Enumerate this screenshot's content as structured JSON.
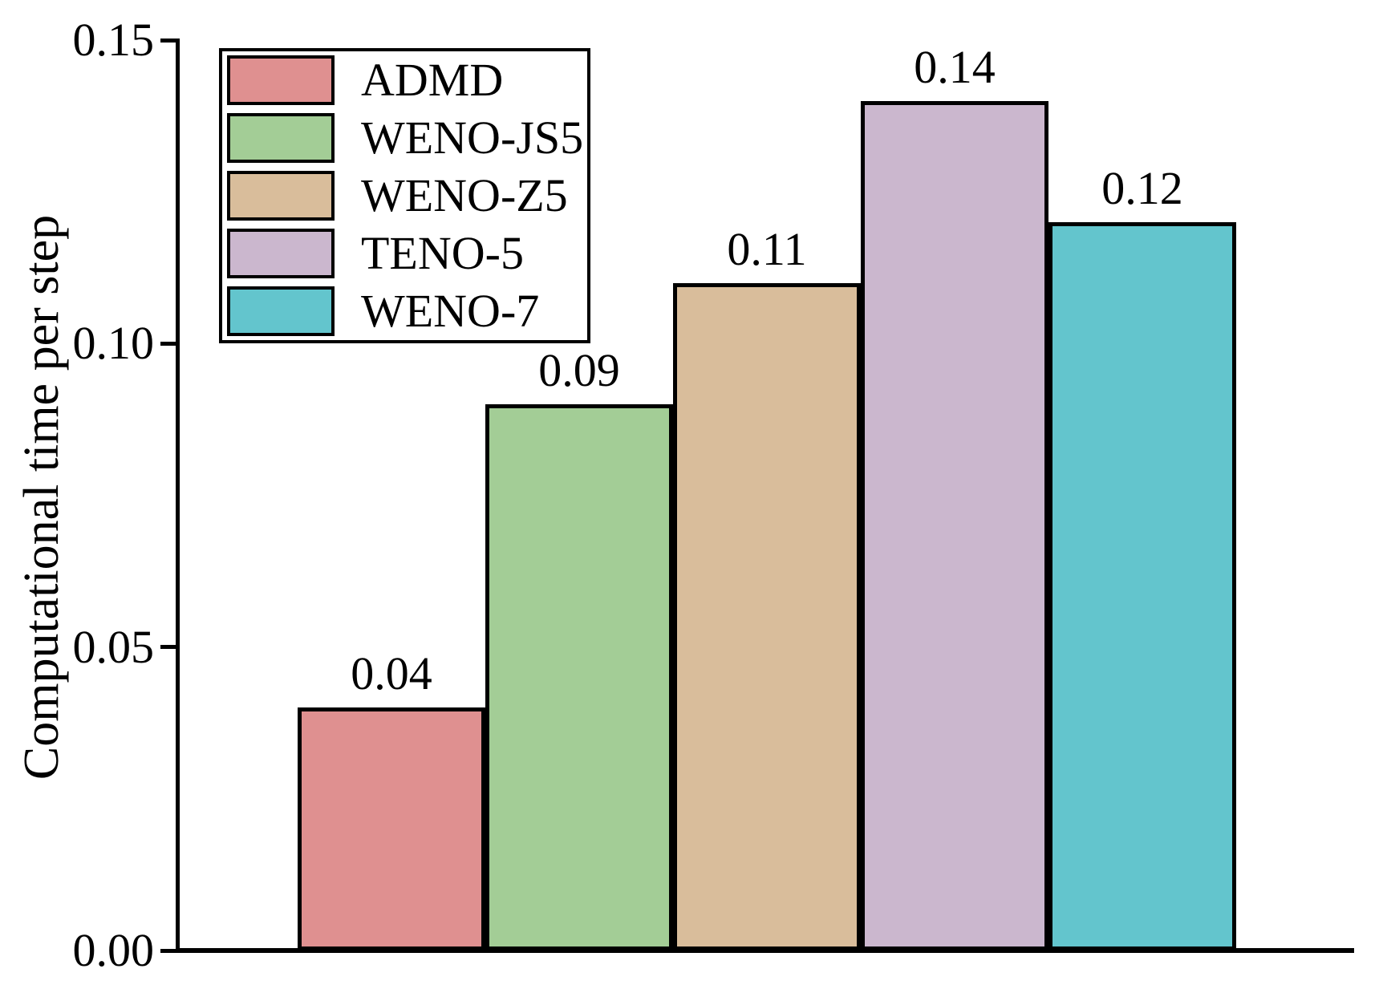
{
  "chart_data": {
    "type": "bar",
    "title": "",
    "xlabel": "",
    "ylabel": "Computational time per step",
    "categories": [
      "ADMD",
      "WENO-JS5",
      "WENO-Z5",
      "TENO-5",
      "WENO-7"
    ],
    "values": [
      0.04,
      0.09,
      0.11,
      0.14,
      0.12
    ],
    "value_labels": [
      "0.04",
      "0.09",
      "0.11",
      "0.14",
      "0.12"
    ],
    "bar_colors": [
      "#DF9090",
      "#A3CD96",
      "#D9BD9B",
      "#CBB7CE",
      "#63C5CD"
    ],
    "bar_edge_color": "#000000",
    "ylim": [
      0,
      0.15
    ],
    "yticks": [
      {
        "value": 0.0,
        "label": "0.00"
      },
      {
        "value": 0.05,
        "label": "0.05"
      },
      {
        "value": 0.1,
        "label": "0.10"
      },
      {
        "value": 0.15,
        "label": "0.15"
      }
    ],
    "grid": false,
    "legend": {
      "position": "upper-left",
      "entries": [
        {
          "label": "ADMD",
          "color": "#DF9090"
        },
        {
          "label": "WENO-JS5",
          "color": "#A3CD96"
        },
        {
          "label": "WENO-Z5",
          "color": "#D9BD9B"
        },
        {
          "label": "TENO-5",
          "color": "#CBB7CE"
        },
        {
          "label": "WENO-7",
          "color": "#63C5CD"
        }
      ]
    }
  }
}
